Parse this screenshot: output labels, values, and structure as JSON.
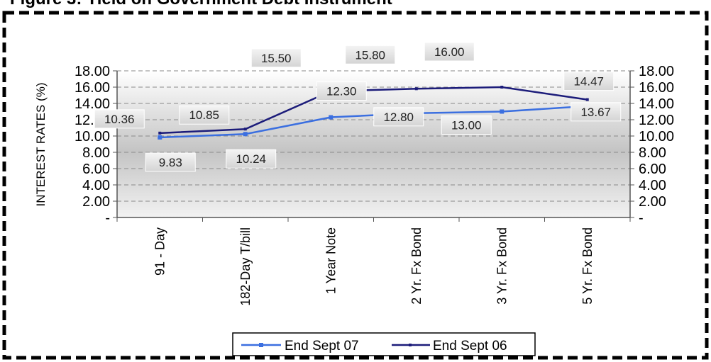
{
  "chart_data": {
    "type": "line",
    "title": "Figure 3: Yield on Government Debt Instrument",
    "ylabel": "INTEREST RATES (%)",
    "xlabel": "",
    "ylim": [
      0,
      18
    ],
    "yticks": [
      0,
      2,
      4,
      6,
      8,
      10,
      12,
      14,
      16,
      18
    ],
    "ytick_labels": [
      "-",
      "2.00",
      "4.00",
      "6.00",
      "8.00",
      "10.00",
      "12.00",
      "14.00",
      "16.00",
      "18.00"
    ],
    "secondary_axis": "right, same scale",
    "grid": "dashed horizontal",
    "legend_position": "bottom-center",
    "categories": [
      "91 - Day",
      "182-Day T/bill",
      "1 Year Note",
      "2 Yr. Fx Bond",
      "3 Yr. Fx Bond",
      "5 Yr. Fx Bond"
    ],
    "series": [
      {
        "name": "End Sept 07",
        "color": "#3b6fe0",
        "values": [
          9.83,
          10.24,
          12.3,
          12.8,
          13.0,
          13.67
        ],
        "labels": [
          "9.83",
          "10.24",
          "12.30",
          "12.80",
          "13.00",
          "13.67"
        ]
      },
      {
        "name": "End Sept 06",
        "color": "#1c1c7a",
        "values": [
          10.36,
          10.85,
          15.5,
          15.8,
          16.0,
          14.47
        ],
        "labels": [
          "10.36",
          "10.85",
          "15.50",
          "15.80",
          "16.00",
          "14.47"
        ]
      }
    ]
  }
}
